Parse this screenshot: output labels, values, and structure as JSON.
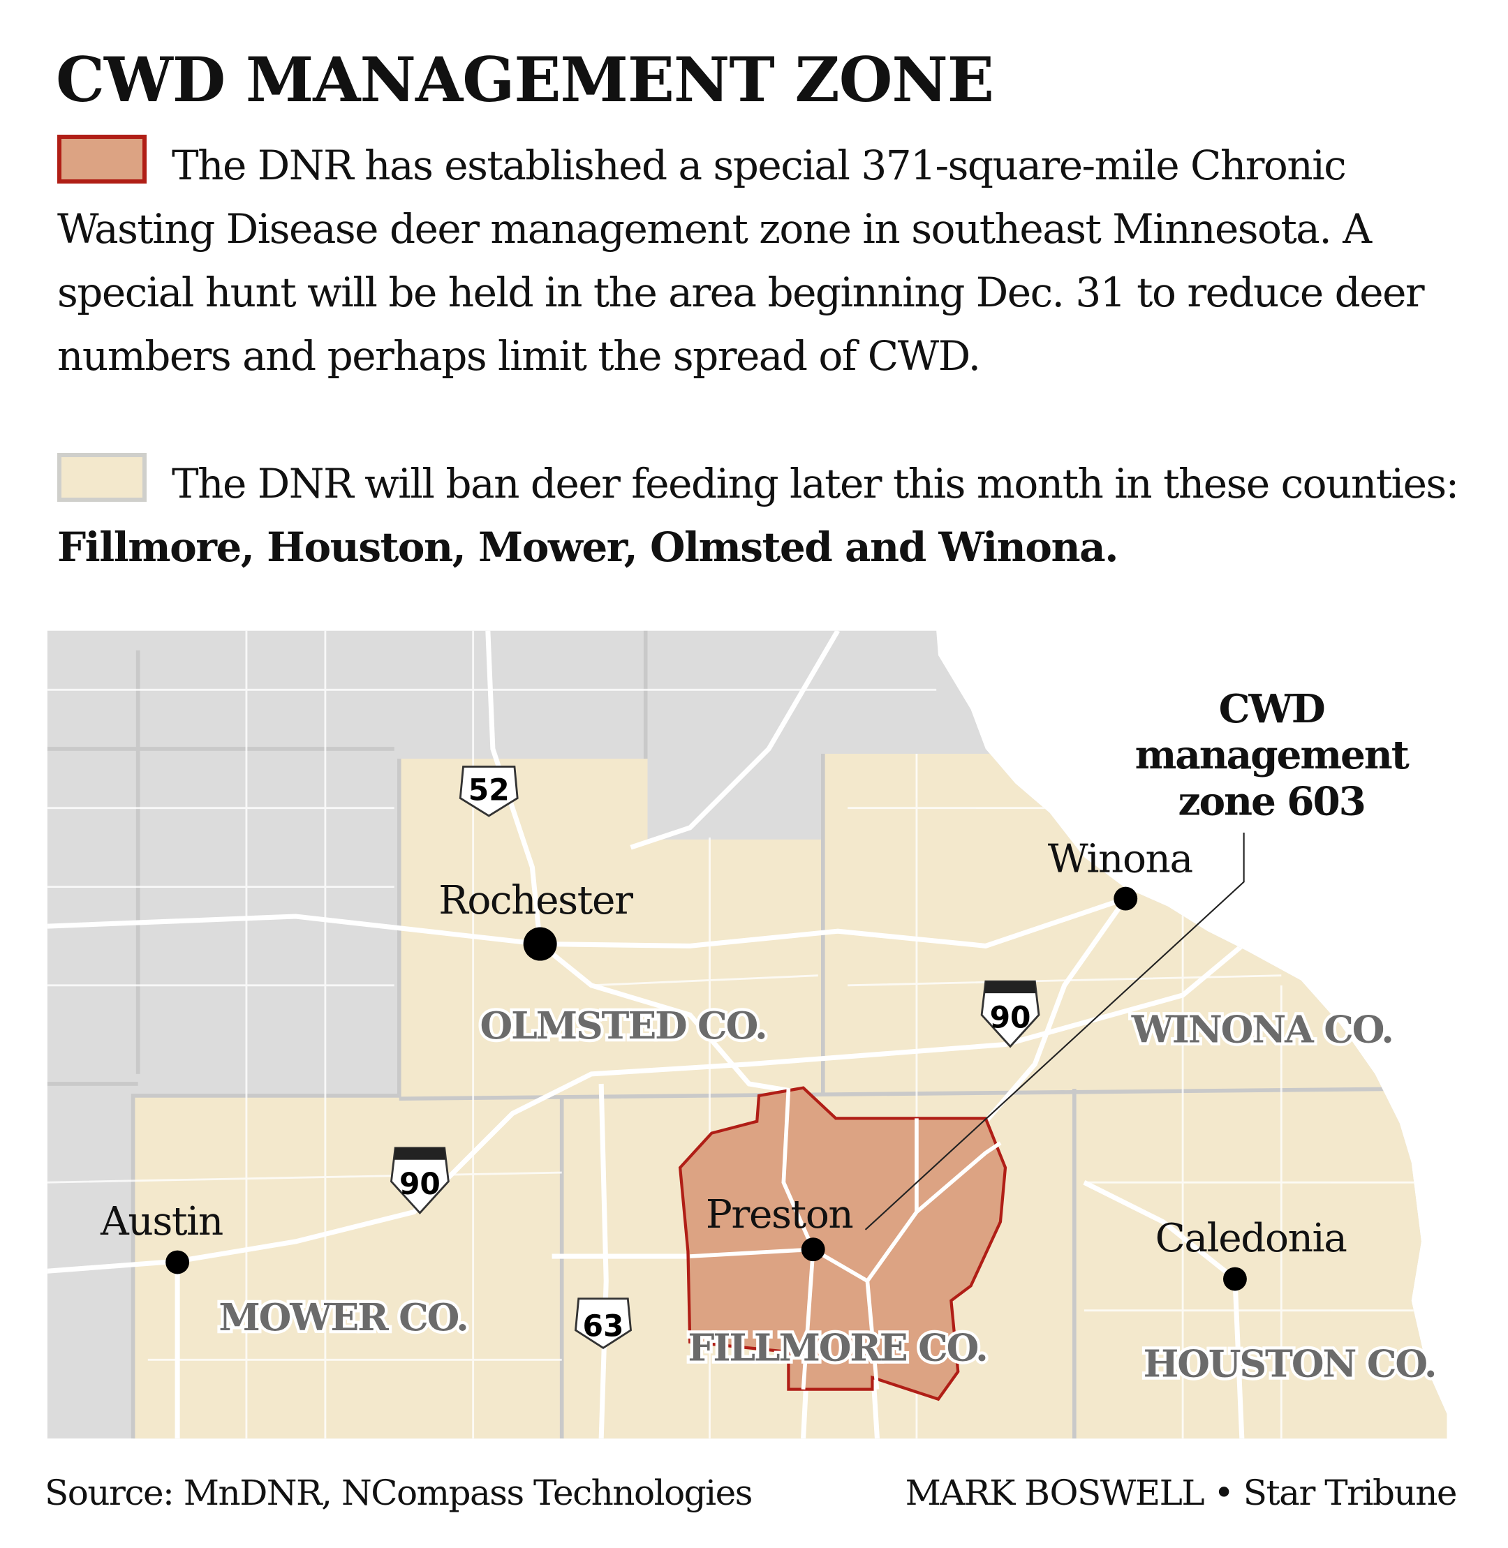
{
  "title": "CWD MANAGEMENT ZONE",
  "legend": [
    {
      "color": "#dca383",
      "border": "#b01e16",
      "text": "The DNR has established a special 371-square-mile Chronic Wasting Disease deer management zone in southeast Minnesota. A special hunt will be held in the area beginning Dec. 31 to reduce deer numbers and perhaps limit the spread of CWD."
    },
    {
      "color": "#f3e8cc",
      "border": "#cfcfcb",
      "text": "The DNR will ban deer feeding later this month in these counties: ",
      "bold": "Fillmore, Houston, Mower, Olmsted and Winona."
    }
  ],
  "map": {
    "colors": {
      "other_land": "#dcdcdc",
      "feeding_ban": "#f3e8cc",
      "zone": "#dca383",
      "zone_border": "#b01e16"
    },
    "cities": [
      "Rochester",
      "Winona",
      "Austin",
      "Preston",
      "Caledonia"
    ],
    "counties": [
      "OLMSTED CO.",
      "WINONA CO.",
      "MOWER CO.",
      "FILLMORE CO.",
      "HOUSTON CO."
    ],
    "highways": [
      {
        "type": "us-route",
        "number": "52"
      },
      {
        "type": "interstate",
        "number": "90"
      },
      {
        "type": "interstate",
        "number": "90"
      },
      {
        "type": "us-route",
        "number": "63"
      }
    ],
    "callout": [
      "CWD",
      "management",
      "zone 603"
    ]
  },
  "footer": {
    "source": "Source: MnDNR, NCompass Technologies",
    "credit": "MARK BOSWELL • Star Tribune"
  }
}
